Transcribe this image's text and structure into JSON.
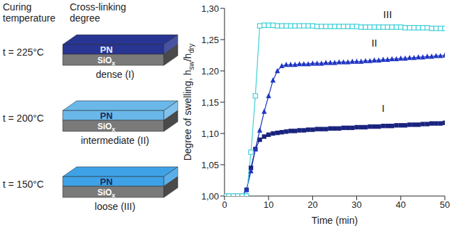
{
  "diagram": {
    "headers": [
      "Curing temperature",
      "Cross-linking degree"
    ],
    "film": "PN",
    "substrate": [
      "SiO",
      "x"
    ],
    "rows": [
      {
        "temperature": "t = 225°C",
        "degree": "dense (I)",
        "color": "#283593"
      },
      {
        "temperature": "t = 200°C",
        "degree": "intermediate (II)",
        "color": "#6ab8ea"
      },
      {
        "temperature": "t = 150°C",
        "degree": "loose (III)",
        "color": "#3fa2e6"
      }
    ]
  },
  "chart_data": {
    "type": "line",
    "xlabel": "Time (min)",
    "ylabel": [
      [
        "Degree of swelling, h",
        "sw"
      ],
      [
        "/h",
        "dry"
      ]
    ],
    "xlim": [
      0,
      50
    ],
    "xticks": [
      0,
      10,
      20,
      30,
      40,
      50
    ],
    "ylim": [
      1.0,
      1.3
    ],
    "yticks": [
      {
        "value": 1.0,
        "label": "1,00"
      },
      {
        "value": 1.05,
        "label": "1,05"
      },
      {
        "value": 1.1,
        "label": "1,10"
      },
      {
        "value": 1.15,
        "label": "1,15"
      },
      {
        "value": 1.2,
        "label": "1,20"
      },
      {
        "value": 1.25,
        "label": "1,25"
      },
      {
        "value": 1.3,
        "label": "1,30"
      }
    ],
    "grid": false,
    "x": [
      0,
      1,
      2,
      3,
      4,
      5,
      6,
      7,
      8,
      9,
      10,
      11,
      12,
      13,
      14,
      15,
      16,
      17,
      18,
      19,
      20,
      21,
      22,
      23,
      24,
      25,
      26,
      27,
      28,
      29,
      30,
      31,
      32,
      33,
      34,
      35,
      36,
      37,
      38,
      39,
      40,
      41,
      42,
      43,
      44,
      45,
      46,
      47,
      48,
      49,
      50
    ],
    "series": [
      {
        "name": "I",
        "color": "#1a237e",
        "marker": "square",
        "label_x": 36,
        "label_y": 1.14,
        "values": [
          1.0,
          1.0,
          1.0,
          1.0,
          1.0,
          1.01,
          1.045,
          1.075,
          1.09,
          1.095,
          1.098,
          1.1,
          1.101,
          1.102,
          1.103,
          1.104,
          1.104,
          1.105,
          1.105,
          1.106,
          1.106,
          1.107,
          1.107,
          1.107,
          1.108,
          1.108,
          1.108,
          1.109,
          1.109,
          1.109,
          1.11,
          1.11,
          1.11,
          1.111,
          1.111,
          1.111,
          1.112,
          1.112,
          1.112,
          1.113,
          1.113,
          1.113,
          1.114,
          1.114,
          1.114,
          1.115,
          1.115,
          1.116,
          1.116,
          1.116,
          1.117
        ]
      },
      {
        "name": "II",
        "color": "#1f35c4",
        "marker": "triangle",
        "label_x": 34,
        "label_y": 1.245,
        "values": [
          1.0,
          1.0,
          1.0,
          1.0,
          1.0,
          1.01,
          1.04,
          1.075,
          1.105,
          1.135,
          1.16,
          1.185,
          1.2,
          1.208,
          1.21,
          1.21,
          1.21,
          1.211,
          1.211,
          1.211,
          1.212,
          1.212,
          1.212,
          1.213,
          1.213,
          1.213,
          1.214,
          1.214,
          1.214,
          1.215,
          1.215,
          1.215,
          1.216,
          1.216,
          1.217,
          1.217,
          1.218,
          1.218,
          1.219,
          1.219,
          1.22,
          1.22,
          1.221,
          1.221,
          1.222,
          1.222,
          1.223,
          1.223,
          1.224,
          1.224,
          1.225
        ]
      },
      {
        "name": "III",
        "color": "#3ccfd6",
        "marker": "square_open",
        "label_x": 37,
        "label_y": 1.29,
        "values": [
          1.0,
          1.0,
          1.0,
          1.0,
          1.0,
          1.0,
          1.07,
          1.16,
          1.272,
          1.273,
          1.273,
          1.273,
          1.272,
          1.272,
          1.272,
          1.272,
          1.272,
          1.272,
          1.272,
          1.272,
          1.272,
          1.271,
          1.271,
          1.271,
          1.271,
          1.271,
          1.271,
          1.271,
          1.271,
          1.271,
          1.271,
          1.27,
          1.27,
          1.27,
          1.27,
          1.27,
          1.27,
          1.27,
          1.27,
          1.27,
          1.27,
          1.269,
          1.269,
          1.269,
          1.269,
          1.269,
          1.269,
          1.268,
          1.268,
          1.268,
          1.268
        ]
      }
    ]
  }
}
